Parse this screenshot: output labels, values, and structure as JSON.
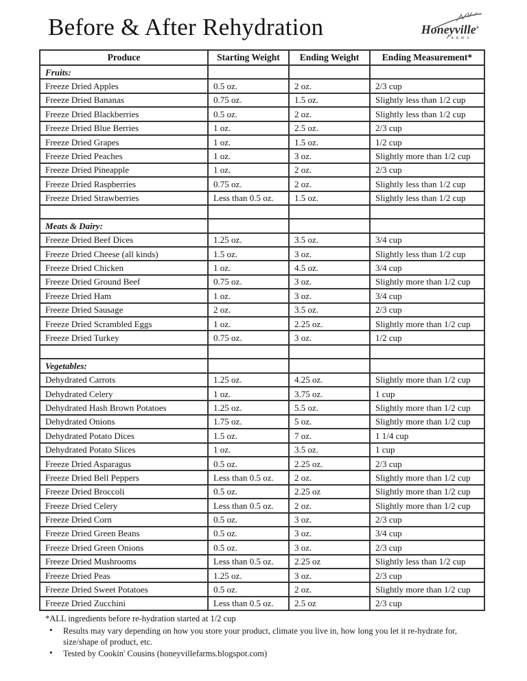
{
  "header": {
    "title": "Before & After Rehydration",
    "logo_text": "Honeyville",
    "logo_reg": "®",
    "logo_subtext": "FARMS"
  },
  "table": {
    "headers": [
      "Produce",
      "Starting Weight",
      "Ending Weight",
      "Ending Measurement*"
    ],
    "sections": [
      {
        "label": "Fruits:",
        "rows": [
          [
            "Freeze Dried Apples",
            "0.5 oz.",
            "2 oz.",
            "2/3 cup"
          ],
          [
            "Freeze Dried Bananas",
            "0.75 oz.",
            "1.5 oz.",
            "Slightly less than 1/2 cup"
          ],
          [
            "Freeze Dried Blackberries",
            "0.5 oz.",
            "2 oz.",
            "Slightly less than 1/2 cup"
          ],
          [
            "Freeze Dried Blue Berries",
            "1 oz.",
            "2.5 oz.",
            "2/3 cup"
          ],
          [
            "Freeze Dried Grapes",
            "1 oz.",
            "1.5 oz.",
            "1/2 cup"
          ],
          [
            "Freeze Dried Peaches",
            "1 oz.",
            "3 oz.",
            "Slightly more than 1/2 cup"
          ],
          [
            "Freeze Dried Pineapple",
            "1 oz.",
            "2 oz.",
            "2/3 cup"
          ],
          [
            "Freeze Dried Raspberries",
            "0.75 oz.",
            "2 oz.",
            "Slightly less than 1/2 cup"
          ],
          [
            "Freeze Dried Strawberries",
            "Less than 0.5 oz.",
            "1.5 oz.",
            "Slightly less than 1/2 cup"
          ]
        ]
      },
      {
        "label": "Meats & Dairy:",
        "rows": [
          [
            "Freeze Dried Beef Dices",
            "1.25 oz.",
            "3.5 oz.",
            "3/4 cup"
          ],
          [
            "Freeze Dried Cheese (all kinds)",
            "1.5 oz.",
            "3 oz.",
            "Slightly less than 1/2 cup"
          ],
          [
            "Freeze Dried Chicken",
            "1 oz.",
            "4.5 oz.",
            "3/4 cup"
          ],
          [
            "Freeze Dried Ground Beef",
            "0.75 oz.",
            "3 oz.",
            "Slightly more than 1/2 cup"
          ],
          [
            "Freeze Dried Ham",
            "1 oz.",
            "3 oz.",
            "3/4 cup"
          ],
          [
            "Freeze Dried Sausage",
            "2 oz.",
            "3.5 oz.",
            "2/3 cup"
          ],
          [
            "Freeze Dried Scrambled Eggs",
            "1 oz.",
            "2.25 oz.",
            "Slightly more than 1/2 cup"
          ],
          [
            "Freeze Dried Turkey",
            "0.75 oz.",
            "3 oz.",
            "1/2 cup"
          ]
        ]
      },
      {
        "label": "Vegetables:",
        "rows": [
          [
            "Dehydrated Carrots",
            "1.25 oz.",
            "4.25 oz.",
            "Slightly more than 1/2 cup"
          ],
          [
            "Dehydrated Celery",
            "1 oz.",
            "3.75 oz.",
            "1 cup"
          ],
          [
            "Dehydrated Hash Brown Potatoes",
            "1.25 oz.",
            "5.5 oz.",
            "Slightly more than 1/2 cup"
          ],
          [
            "Dehydrated Onions",
            "1.75 oz.",
            "5 oz.",
            "Slightly more than 1/2 cup"
          ],
          [
            "Dehydrated Potato Dices",
            "1.5 oz.",
            "7 oz.",
            "1 1/4 cup"
          ],
          [
            "Dehydrated Potato Slices",
            "1 oz.",
            "3.5 oz.",
            "1 cup"
          ],
          [
            "Freeze Dried Asparagus",
            "0.5 oz.",
            "2.25 oz.",
            "2/3 cup"
          ],
          [
            "Freeze Dried Bell Peppers",
            "Less than 0.5 oz.",
            "2 oz.",
            "Slightly more than 1/2 cup"
          ],
          [
            "Freeze Dried Broccoli",
            "0.5 oz.",
            "2.25 oz",
            "Slightly more than 1/2 cup"
          ],
          [
            "Freeze Dried Celery",
            "Less than 0.5 oz.",
            "2 oz.",
            "Slightly more than 1/2 cup"
          ],
          [
            "Freeze Dried Corn",
            "0.5 oz.",
            "3 oz.",
            "2/3 cup"
          ],
          [
            "Freeze Dried Green Beans",
            "0.5 oz.",
            "3 oz.",
            "3/4 cup"
          ],
          [
            "Freeze Dried Green Onions",
            "0.5 oz.",
            "3 oz.",
            "2/3 cup"
          ],
          [
            "Freeze Dried Mushrooms",
            "Less than 0.5 oz.",
            "2.25 oz",
            "Slightly less than 1/2 cup"
          ],
          [
            "Freeze Dried Peas",
            "1.25 oz.",
            "3 oz.",
            "2/3 cup"
          ],
          [
            "Freeze Dried Sweet Potatoes",
            "0.5 oz.",
            "2 oz.",
            "Slightly more than 1/2 cup"
          ],
          [
            "Freeze Dried Zucchini",
            "Less than 0.5 oz.",
            "2.5 oz",
            "2/3 cup"
          ]
        ]
      }
    ]
  },
  "footnotes": {
    "asterisk": "*ALL ingredients before re-hydration started at 1/2 cup",
    "bullets": [
      "Results may vary depending on how you store your product, climate you live in, how long you let it re-hydrate for, size/shape of product, etc.",
      "Tested by Cookin' Cousins (honeyvillefarms.blogspot.com)"
    ]
  }
}
